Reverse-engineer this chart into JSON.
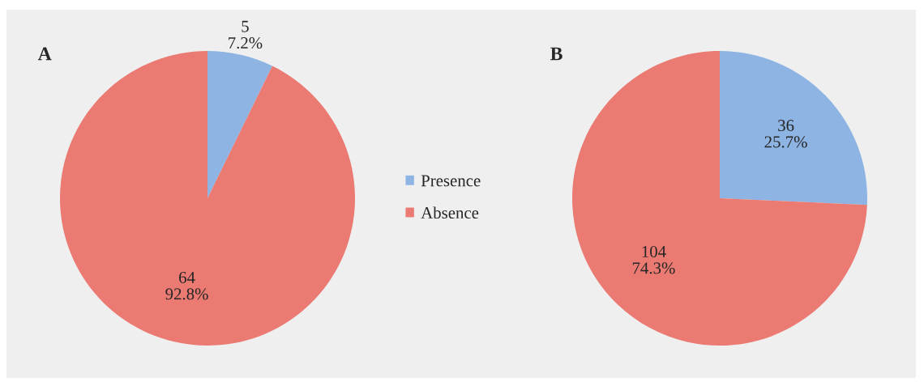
{
  "chart_data": [
    {
      "type": "pie",
      "title": "A",
      "categories": [
        "Presence",
        "Absence"
      ],
      "values": [
        5,
        64
      ],
      "colors": [
        "#8db4e3",
        "#ea7a72"
      ],
      "value_labels": [
        "5\n7.2%",
        "64\n92.8%"
      ],
      "legend": "right"
    },
    {
      "type": "pie",
      "title": "B",
      "categories": [
        null,
        null
      ],
      "values": [
        36,
        104
      ],
      "colors": [
        "#8db4e3",
        "#ea7a72"
      ],
      "value_labels": [
        "36\n25.7%",
        "104\n74.3%"
      ]
    }
  ]
}
